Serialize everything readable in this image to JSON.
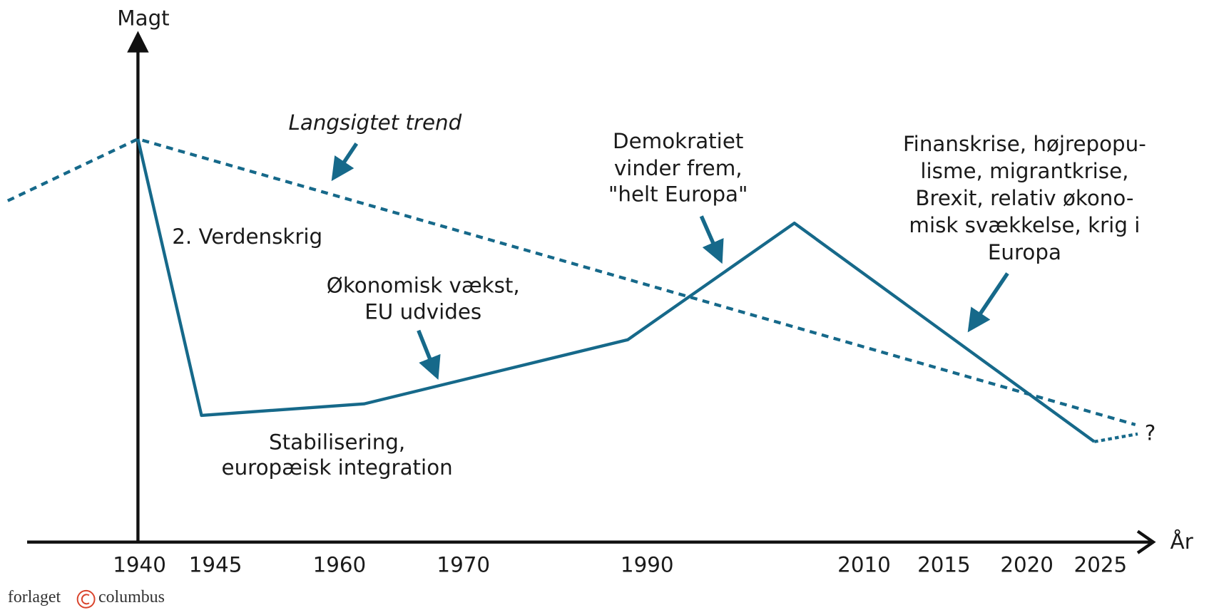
{
  "axes": {
    "y_label": "Magt",
    "x_label": "År",
    "x_ticks": [
      "1940",
      "1945",
      "1960",
      "1970",
      "1990",
      "2010",
      "2015",
      "2020",
      "2025"
    ]
  },
  "annotations": {
    "trend": "Langsigtet trend",
    "war": "2. Verdenskrig",
    "growth": [
      "Økonomisk vækst,",
      "EU udvides"
    ],
    "stabilisation": [
      "Stabilisering,",
      "europæisk integration"
    ],
    "democracy": [
      "Demokratiet",
      "vinder frem,",
      "\"helt Europa\""
    ],
    "crisis": [
      "Finanskrise, højrepopu-",
      "lisme, migrantkrise,",
      "Brexit, relativ økono-",
      "misk svækkelse, krig i",
      "Europa"
    ],
    "question": "?"
  },
  "footer": {
    "publisher_left": "forlaget",
    "publisher_right": "columbus"
  }
}
